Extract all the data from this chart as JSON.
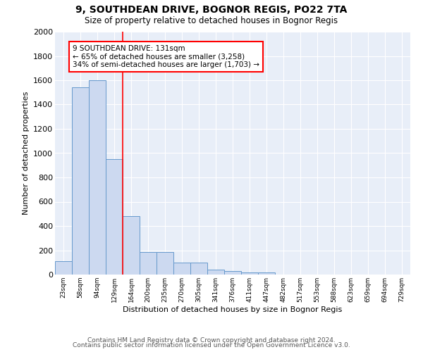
{
  "title1": "9, SOUTHDEAN DRIVE, BOGNOR REGIS, PO22 7TA",
  "title2": "Size of property relative to detached houses in Bognor Regis",
  "xlabel": "Distribution of detached houses by size in Bognor Regis",
  "ylabel": "Number of detached properties",
  "bin_labels": [
    "23sqm",
    "58sqm",
    "94sqm",
    "129sqm",
    "164sqm",
    "200sqm",
    "235sqm",
    "270sqm",
    "305sqm",
    "341sqm",
    "376sqm",
    "411sqm",
    "447sqm",
    "482sqm",
    "517sqm",
    "553sqm",
    "588sqm",
    "623sqm",
    "659sqm",
    "694sqm",
    "729sqm"
  ],
  "bar_heights": [
    110,
    1540,
    1600,
    950,
    480,
    185,
    185,
    100,
    100,
    40,
    30,
    20,
    20,
    0,
    0,
    0,
    0,
    0,
    0,
    0,
    0
  ],
  "bar_color": "#ccd9f0",
  "bar_edge_color": "#6699cc",
  "ylim": [
    0,
    2000
  ],
  "yticks": [
    0,
    200,
    400,
    600,
    800,
    1000,
    1200,
    1400,
    1600,
    1800,
    2000
  ],
  "background_color": "#e8eef8",
  "grid_color": "#d0d8e8",
  "annotation_line1": "9 SOUTHDEAN DRIVE: 131sqm",
  "annotation_line2": "← 65% of detached houses are smaller (3,258)",
  "annotation_line3": "34% of semi-detached houses are larger (1,703) →",
  "footer1": "Contains HM Land Registry data © Crown copyright and database right 2024.",
  "footer2": "Contains public sector information licensed under the Open Government Licence v3.0."
}
